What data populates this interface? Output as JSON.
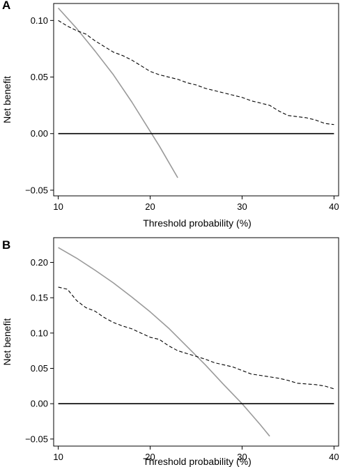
{
  "chart_data": [
    {
      "panel_label": "A",
      "type": "line",
      "xlabel": "Threshold probability (%)",
      "ylabel": "Net benefit",
      "xlim": [
        9.5,
        40.5
      ],
      "ylim": [
        -0.055,
        0.115
      ],
      "x_ticks": [
        10,
        20,
        30,
        40
      ],
      "x_tick_labels": [
        "10",
        "20",
        "30",
        "40"
      ],
      "y_ticks": [
        0.1,
        0.05,
        0.0,
        -0.05
      ],
      "y_tick_labels": [
        "0.10",
        "0.05",
        "0.00",
        "−0.05"
      ],
      "grid": false,
      "series": [
        {
          "style": "solid-gray",
          "color": "#9a9a9a",
          "x": [
            10,
            12,
            14,
            16,
            18,
            20,
            21,
            22,
            23
          ],
          "y": [
            0.111,
            0.093,
            0.073,
            0.052,
            0.028,
            0.002,
            -0.011,
            -0.025,
            -0.039
          ]
        },
        {
          "style": "dashed-black",
          "color": "#000000",
          "x": [
            10,
            11,
            12,
            13,
            14,
            15,
            16,
            17,
            18,
            19,
            20,
            21,
            22,
            23,
            24,
            25,
            26,
            27,
            28,
            29,
            30,
            31,
            32,
            33,
            34,
            35,
            36,
            37,
            38,
            39,
            40
          ],
          "y": [
            0.1,
            0.095,
            0.091,
            0.088,
            0.082,
            0.077,
            0.072,
            0.069,
            0.065,
            0.06,
            0.055,
            0.052,
            0.05,
            0.048,
            0.045,
            0.043,
            0.04,
            0.038,
            0.036,
            0.034,
            0.032,
            0.029,
            0.027,
            0.025,
            0.02,
            0.016,
            0.015,
            0.014,
            0.012,
            0.009,
            0.008
          ]
        },
        {
          "style": "solid-black",
          "color": "#000000",
          "x": [
            10,
            40
          ],
          "y": [
            0.0,
            0.0
          ]
        }
      ]
    },
    {
      "panel_label": "B",
      "type": "line",
      "xlabel": "Threshold probability (%)",
      "ylabel": "Net benefit",
      "xlim": [
        9.5,
        40.5
      ],
      "ylim": [
        -0.06,
        0.235
      ],
      "x_ticks": [
        10,
        20,
        30,
        40
      ],
      "x_tick_labels": [
        "10",
        "20",
        "30",
        "40"
      ],
      "y_ticks": [
        0.2,
        0.15,
        0.1,
        0.05,
        0.0,
        -0.05
      ],
      "y_tick_labels": [
        "0.20",
        "0.15",
        "0.10",
        "0.05",
        "0.00",
        "−0.05"
      ],
      "grid": false,
      "series": [
        {
          "style": "solid-gray",
          "color": "#9a9a9a",
          "x": [
            10,
            12,
            14,
            16,
            18,
            20,
            22,
            24,
            26,
            28,
            30,
            31,
            32,
            33
          ],
          "y": [
            0.221,
            0.206,
            0.189,
            0.171,
            0.151,
            0.13,
            0.107,
            0.081,
            0.055,
            0.027,
            0.0,
            -0.015,
            -0.03,
            -0.046
          ]
        },
        {
          "style": "dashed-black",
          "color": "#000000",
          "x": [
            10,
            11,
            12,
            13,
            14,
            15,
            16,
            17,
            18,
            19,
            20,
            21,
            22,
            23,
            24,
            25,
            26,
            27,
            28,
            29,
            30,
            31,
            32,
            33,
            34,
            35,
            36,
            37,
            38,
            39,
            40
          ],
          "y": [
            0.165,
            0.162,
            0.146,
            0.136,
            0.131,
            0.122,
            0.115,
            0.11,
            0.106,
            0.1,
            0.094,
            0.091,
            0.082,
            0.075,
            0.071,
            0.067,
            0.063,
            0.058,
            0.055,
            0.052,
            0.047,
            0.042,
            0.04,
            0.038,
            0.036,
            0.033,
            0.029,
            0.028,
            0.027,
            0.025,
            0.021
          ]
        },
        {
          "style": "solid-black",
          "color": "#000000",
          "x": [
            10,
            40
          ],
          "y": [
            0.0,
            0.0
          ]
        }
      ]
    }
  ]
}
